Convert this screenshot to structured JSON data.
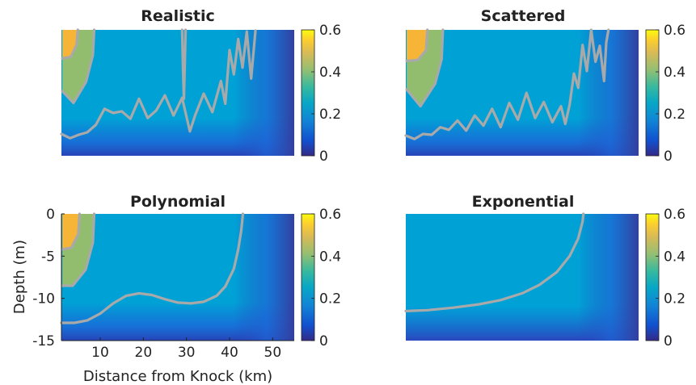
{
  "figure": {
    "xlabel": "Distance from Knock (km)",
    "ylabel": "Depth (m)"
  },
  "chart_data": [
    {
      "type": "heatmap",
      "title": "Realistic",
      "xlim": [
        1,
        55
      ],
      "ylim": [
        -15,
        0
      ],
      "colorbar": {
        "ticks": [
          "0",
          "0.2",
          "0.4",
          "0.6"
        ],
        "range": [
          0,
          0.6
        ]
      },
      "fields": [
        {
          "name": "orange",
          "value": 0.5,
          "type": "patch",
          "points": [
            [
              1.2,
              0
            ],
            [
              4.8,
              0
            ],
            [
              4.5,
              -1.8
            ],
            [
              3.2,
              -3.2
            ],
            [
              1.2,
              -3.4
            ]
          ]
        },
        {
          "name": "green",
          "value": 0.4,
          "type": "patch",
          "points": [
            [
              1.2,
              0
            ],
            [
              8.6,
              0
            ],
            [
              8.3,
              -3
            ],
            [
              6.7,
              -6.2
            ],
            [
              3.8,
              -8.7
            ],
            [
              1.2,
              -7.3
            ]
          ]
        }
      ],
      "contours": [
        {
          "level": 0.2,
          "points": [
            [
              1,
              -12.4
            ],
            [
              3,
              -12.9
            ],
            [
              5,
              -12.5
            ],
            [
              7,
              -12.2
            ],
            [
              9,
              -11.3
            ],
            [
              11,
              -9.4
            ],
            [
              13,
              -9.9
            ],
            [
              15,
              -9.7
            ],
            [
              17,
              -10.6
            ],
            [
              19,
              -8.2
            ],
            [
              21,
              -10.5
            ],
            [
              23,
              -9.6
            ],
            [
              25,
              -7.8
            ],
            [
              27,
              -10.2
            ],
            [
              29,
              -8.1
            ],
            [
              30.8,
              -12.1
            ],
            [
              32,
              -10.2
            ],
            [
              34,
              -7.6
            ],
            [
              36,
              -9.8
            ],
            [
              38,
              -6.1
            ],
            [
              39,
              -8.8
            ],
            [
              40,
              -2.4
            ],
            [
              41,
              -5.3
            ],
            [
              42,
              -1.1
            ],
            [
              43,
              -4.5
            ],
            [
              44,
              -0.2
            ],
            [
              45,
              -5.8
            ],
            [
              46,
              -0.1
            ]
          ]
        },
        {
          "level": 0.4,
          "points": [
            [
              1.2,
              -7.3
            ],
            [
              3.8,
              -8.7
            ],
            [
              6.7,
              -6.2
            ],
            [
              8.3,
              -3
            ],
            [
              8.6,
              0
            ]
          ]
        },
        {
          "level": 0.5,
          "points": [
            [
              1.2,
              -3.4
            ],
            [
              3.2,
              -3.2
            ],
            [
              4.5,
              -1.8
            ],
            [
              4.8,
              0
            ]
          ]
        },
        {
          "level": 0.2,
          "points": [
            [
              29,
              0
            ],
            [
              29.2,
              -4.5
            ],
            [
              29.4,
              -8.2
            ],
            [
              29.6,
              -4.5
            ],
            [
              29.8,
              0
            ]
          ]
        }
      ]
    },
    {
      "type": "heatmap",
      "title": "Scattered",
      "xlim": [
        1,
        55
      ],
      "ylim": [
        -15,
        0
      ],
      "colorbar": {
        "ticks": [
          "0",
          "0.2",
          "0.4",
          "0.6"
        ],
        "range": [
          0,
          0.6
        ]
      },
      "fields": [
        {
          "name": "orange",
          "value": 0.5,
          "type": "patch",
          "points": [
            [
              1.2,
              0
            ],
            [
              6,
              0
            ],
            [
              5.7,
              -2.4
            ],
            [
              3.8,
              -3.6
            ],
            [
              1.2,
              -3.7
            ]
          ]
        },
        {
          "name": "green",
          "value": 0.4,
          "type": "patch",
          "points": [
            [
              1.2,
              0
            ],
            [
              9.6,
              0
            ],
            [
              9.3,
              -3.5
            ],
            [
              7.8,
              -6.4
            ],
            [
              4.4,
              -9.1
            ],
            [
              1.2,
              -7.1
            ]
          ]
        }
      ],
      "contours": [
        {
          "level": 0.2,
          "points": [
            [
              1,
              -12.6
            ],
            [
              3,
              -13
            ],
            [
              5,
              -12.4
            ],
            [
              7,
              -12.5
            ],
            [
              9,
              -11.6
            ],
            [
              11,
              -11.9
            ],
            [
              13,
              -10.8
            ],
            [
              15,
              -12
            ],
            [
              17,
              -10.2
            ],
            [
              19,
              -11.4
            ],
            [
              21,
              -9.4
            ],
            [
              23,
              -11.6
            ],
            [
              25,
              -8.7
            ],
            [
              27,
              -10.7
            ],
            [
              29,
              -7.5
            ],
            [
              31,
              -10.5
            ],
            [
              33,
              -8.6
            ],
            [
              35,
              -11
            ],
            [
              37,
              -9.1
            ],
            [
              38,
              -11.2
            ],
            [
              39,
              -8.9
            ],
            [
              40,
              -5.2
            ],
            [
              41,
              -6.9
            ],
            [
              42,
              -1.8
            ],
            [
              43,
              -4.9
            ],
            [
              44,
              0
            ],
            [
              45,
              -3.8
            ],
            [
              46,
              -1.9
            ],
            [
              47,
              -6.1
            ],
            [
              47.5,
              -1.5
            ],
            [
              48,
              0
            ]
          ]
        },
        {
          "level": 0.4,
          "points": [
            [
              1.2,
              -7.1
            ],
            [
              4.4,
              -9.1
            ],
            [
              7.8,
              -6.4
            ],
            [
              9.3,
              -3.5
            ],
            [
              9.6,
              0
            ]
          ]
        },
        {
          "level": 0.5,
          "points": [
            [
              1.2,
              -3.7
            ],
            [
              3.8,
              -3.6
            ],
            [
              5.7,
              -2.4
            ],
            [
              6,
              0
            ]
          ]
        }
      ]
    },
    {
      "type": "heatmap",
      "title": "Polynomial",
      "xlim": [
        1,
        55
      ],
      "ylim": [
        -15,
        0
      ],
      "xticks": [
        10,
        20,
        30,
        40,
        50
      ],
      "yticks": [
        0,
        -5,
        -10,
        -15
      ],
      "colorbar": {
        "ticks": [
          "0",
          "0.2",
          "0.4",
          "0.6"
        ],
        "range": [
          0,
          0.6
        ]
      },
      "fields": [
        {
          "name": "orange",
          "value": 0.5,
          "type": "patch",
          "points": [
            [
              1.2,
              0
            ],
            [
              5.2,
              0
            ],
            [
              4.9,
              -2.4
            ],
            [
              3.3,
              -4
            ],
            [
              1.2,
              -4.2
            ]
          ]
        },
        {
          "name": "green",
          "value": 0.4,
          "type": "patch",
          "points": [
            [
              1.2,
              0
            ],
            [
              8.6,
              0
            ],
            [
              8.3,
              -3.4
            ],
            [
              6.6,
              -6.6
            ],
            [
              3.6,
              -8.5
            ],
            [
              1.2,
              -8.5
            ]
          ]
        }
      ],
      "contours": [
        {
          "level": 0.2,
          "points": [
            [
              1,
              -12.9
            ],
            [
              4,
              -12.9
            ],
            [
              7,
              -12.6
            ],
            [
              10,
              -11.8
            ],
            [
              13,
              -10.6
            ],
            [
              16,
              -9.7
            ],
            [
              19,
              -9.4
            ],
            [
              22,
              -9.6
            ],
            [
              25,
              -10.1
            ],
            [
              28,
              -10.5
            ],
            [
              31,
              -10.6
            ],
            [
              34,
              -10.4
            ],
            [
              37,
              -9.7
            ],
            [
              39,
              -8.6
            ],
            [
              41,
              -6.5
            ],
            [
              42,
              -4.2
            ],
            [
              42.7,
              -2
            ],
            [
              43.1,
              0
            ]
          ]
        },
        {
          "level": 0.4,
          "points": [
            [
              1.2,
              -8.5
            ],
            [
              3.6,
              -8.5
            ],
            [
              6.6,
              -6.6
            ],
            [
              8.3,
              -3.4
            ],
            [
              8.6,
              0
            ]
          ]
        },
        {
          "level": 0.5,
          "points": [
            [
              1.2,
              -4.2
            ],
            [
              3.3,
              -4
            ],
            [
              4.9,
              -2.4
            ],
            [
              5.2,
              0
            ]
          ]
        }
      ]
    },
    {
      "type": "heatmap",
      "title": "Exponential",
      "xlim": [
        1,
        55
      ],
      "ylim": [
        -15,
        0
      ],
      "colorbar": {
        "ticks": [
          "0",
          "0.2",
          "0.4",
          "0.6"
        ],
        "range": [
          0,
          0.6
        ]
      },
      "fields": [],
      "contours": [
        {
          "level": 0.2,
          "points": [
            [
              1,
              -11.5
            ],
            [
              6,
              -11.4
            ],
            [
              12,
              -11.1
            ],
            [
              18,
              -10.7
            ],
            [
              23,
              -10.2
            ],
            [
              28,
              -9.4
            ],
            [
              32,
              -8.4
            ],
            [
              36,
              -6.9
            ],
            [
              39,
              -5
            ],
            [
              41,
              -2.9
            ],
            [
              42,
              -0.9
            ],
            [
              42.2,
              0
            ]
          ]
        }
      ]
    }
  ]
}
